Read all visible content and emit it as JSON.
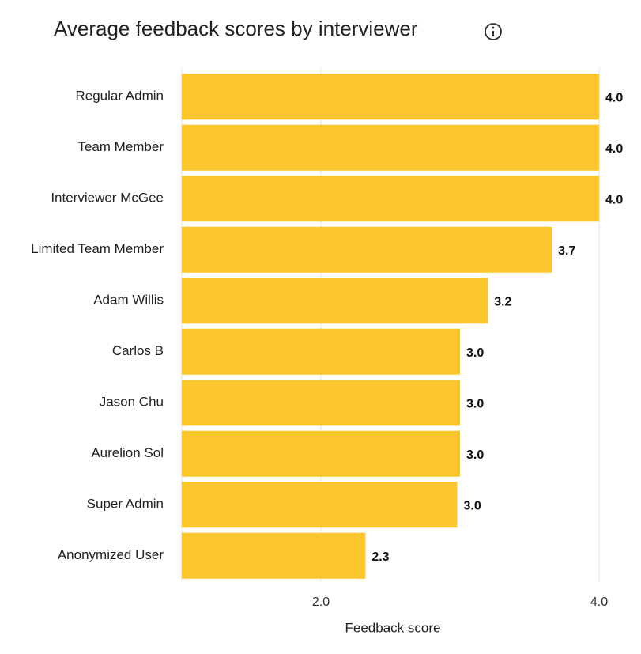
{
  "chart_data": {
    "type": "bar",
    "orientation": "horizontal",
    "title": "Average feedback scores by interviewer",
    "x_label": "Feedback score",
    "categories": [
      "Regular Admin",
      "Team Member",
      "Interviewer McGee",
      "Limited Team Member",
      "Adam Willis",
      "Carlos B",
      "Jason Chu",
      "Aurelion Sol",
      "Super Admin",
      "Anonymized User"
    ],
    "values": [
      4,
      4,
      4,
      3.66,
      3.2,
      3,
      3,
      3,
      2.98,
      2.32
    ],
    "value_labels": [
      "4.0",
      "4.0",
      "4.0",
      "3.7",
      "3.2",
      "3.0",
      "3.0",
      "3.0",
      "3.0",
      "2.3"
    ],
    "color": "#fcc72c",
    "xlim": [
      1,
      4
    ],
    "xticks": [
      {
        "value": 2,
        "label": "2.0"
      },
      {
        "value": 4,
        "label": "4.0"
      }
    ],
    "grid": true
  }
}
